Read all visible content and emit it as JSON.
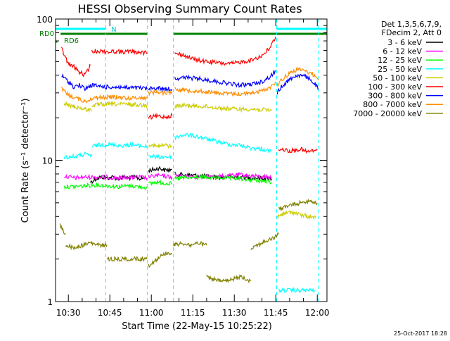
{
  "chart_data": {
    "type": "line",
    "title": "HESSI Observing Summary Count Rates",
    "xlabel": "Start Time (22-May-15 10:25:22)",
    "ylabel": "Count Rate (s⁻¹ detector⁻¹)",
    "x_ticks": [
      "10:30",
      "10:45",
      "11:00",
      "11:15",
      "11:30",
      "11:45",
      "12:00"
    ],
    "x_tick_minutes": [
      630,
      645,
      660,
      675,
      690,
      705,
      720
    ],
    "xlim_minutes": [
      625.37,
      723.5
    ],
    "ylim": [
      1,
      100
    ],
    "y_scale": "log",
    "y_ticks": [
      "1",
      "10",
      "100"
    ],
    "legend_header": [
      "Det 1,3,5,6,7,9,",
      "FDecim 2, Att 0"
    ],
    "legend_position": "right-outside",
    "timestamp": "25-Oct-2017 18:28",
    "flags": [
      {
        "name": "N",
        "color": "#00ffff",
        "segments": [
          [
            625.4,
            643.5
          ],
          [
            705.3,
            723.5
          ]
        ]
      },
      {
        "name": "RD0",
        "color": "#008000",
        "segments": [
          [
            627.2,
            658.6
          ],
          [
            668.0,
            705.0
          ],
          [
            705.0,
            723.5
          ]
        ]
      },
      {
        "name": "RD6",
        "color": "#008000",
        "segments": [
          [
            625.4,
            626.0
          ]
        ]
      }
    ],
    "dashed_lines_minutes": [
      643.5,
      658.6,
      668.0,
      705.3,
      720.5
    ],
    "series": [
      {
        "name": "3 - 6 keV",
        "color": "#000000",
        "segments": [
          {
            "x": [
              638.0,
              640.0,
              642.0,
              644.0,
              646.0,
              648.0,
              650.0,
              652.0,
              654.0,
              656.0,
              658.0
            ],
            "y": [
              7.0,
              7.4,
              7.6,
              7.5,
              7.6,
              7.4,
              7.6,
              7.5,
              7.6,
              7.4,
              7.5
            ]
          },
          {
            "x": [
              659.0,
              661.0,
              663.0,
              665.0,
              667.5
            ],
            "y": [
              8.5,
              8.6,
              8.8,
              8.5,
              8.6
            ]
          },
          {
            "x": [
              668.5,
              672.0,
              676.0,
              680.0,
              684.0,
              688.0,
              692.0,
              696.0,
              700.0,
              703.5
            ],
            "y": [
              8.0,
              7.9,
              7.8,
              7.7,
              7.6,
              7.6,
              7.6,
              7.5,
              7.5,
              7.4
            ]
          }
        ]
      },
      {
        "name": "6 - 12 keV",
        "color": "#ff00ff",
        "segments": [
          {
            "x": [
              628.5,
              632.0,
              636.0,
              640.0,
              644.0,
              648.0,
              652.0,
              656.0,
              658.5
            ],
            "y": [
              7.7,
              7.5,
              7.6,
              7.6,
              7.6,
              7.5,
              7.6,
              7.6,
              7.5
            ]
          },
          {
            "x": [
              659.0,
              662.0,
              665.0,
              667.5
            ],
            "y": [
              7.6,
              7.8,
              7.7,
              7.6
            ]
          },
          {
            "x": [
              668.5,
              674.0,
              680.0,
              686.0,
              692.0,
              698.0,
              703.5
            ],
            "y": [
              7.8,
              7.7,
              7.6,
              7.7,
              7.9,
              7.7,
              7.6
            ]
          }
        ]
      },
      {
        "name": "12 - 25 keV",
        "color": "#00ff00",
        "segments": [
          {
            "x": [
              628.5,
              632.0,
              636.0,
              640.0,
              644.0,
              648.0,
              652.0,
              656.0,
              658.5
            ],
            "y": [
              6.5,
              6.5,
              6.6,
              6.7,
              6.6,
              6.5,
              6.6,
              6.5,
              6.4
            ]
          },
          {
            "x": [
              659.0,
              662.0,
              665.0,
              667.5
            ],
            "y": [
              6.8,
              7.0,
              6.9,
              6.8
            ]
          },
          {
            "x": [
              668.5,
              674.0,
              680.0,
              686.0,
              692.0,
              698.0,
              703.5
            ],
            "y": [
              7.4,
              7.5,
              7.6,
              7.5,
              7.4,
              7.2,
              7.0
            ]
          }
        ]
      },
      {
        "name": "25 - 50 keV",
        "color": "#00ffff",
        "segments": [
          {
            "x": [
              628.5,
              632.0,
              636.0,
              638.5
            ],
            "y": [
              10.5,
              10.6,
              11.0,
              10.8
            ]
          },
          {
            "x": [
              638.5,
              641.0,
              644.0,
              647.0,
              650.0,
              653.0,
              656.0,
              658.5
            ],
            "y": [
              12.5,
              12.8,
              13.0,
              12.8,
              12.7,
              12.9,
              12.6,
              12.5
            ]
          },
          {
            "x": [
              659.0,
              662.0,
              665.0,
              667.5
            ],
            "y": [
              10.8,
              10.5,
              10.6,
              10.5
            ]
          },
          {
            "x": [
              668.5,
              672.0,
              676.0,
              680.0,
              684.0,
              688.0,
              692.0,
              696.0,
              700.0,
              703.5
            ],
            "y": [
              14.5,
              15.2,
              14.8,
              14.2,
              13.5,
              13.0,
              12.8,
              12.2,
              12.0,
              11.5
            ]
          },
          {
            "x": [
              706.0,
              709.0,
              712.0,
              716.0,
              719.0
            ],
            "y": [
              1.2,
              1.2,
              1.2,
              1.2,
              1.2
            ]
          }
        ]
      },
      {
        "name": "50 - 100 keV",
        "color": "#cccc00",
        "segments": [
          {
            "x": [
              628.5,
              632.0,
              636.0,
              638.5
            ],
            "y": [
              25.0,
              24.0,
              23.0,
              22.5
            ]
          },
          {
            "x": [
              638.5,
              642.0,
              646.0,
              650.0,
              654.0,
              658.5
            ],
            "y": [
              24.5,
              24.8,
              25.0,
              24.9,
              24.8,
              24.5
            ]
          },
          {
            "x": [
              659.0,
              662.0,
              665.0,
              667.5
            ],
            "y": [
              13.0,
              12.5,
              12.8,
              12.5
            ]
          },
          {
            "x": [
              668.5,
              672.0,
              676.0,
              680.0,
              684.0,
              688.0,
              692.0,
              696.0,
              700.0,
              703.5
            ],
            "y": [
              24.0,
              24.5,
              24.2,
              24.0,
              23.5,
              23.2,
              23.0,
              23.0,
              22.8,
              22.5
            ]
          },
          {
            "x": [
              705.5,
              708.0,
              711.0,
              714.0,
              717.0,
              719.5
            ],
            "y": [
              4.0,
              4.2,
              4.3,
              4.1,
              4.0,
              3.9
            ]
          }
        ]
      },
      {
        "name": "100 - 300 keV",
        "color": "#ff0000",
        "segments": [
          {
            "x": [
              627.5,
              630.0,
              632.0,
              634.0,
              636.0,
              638.0
            ],
            "y": [
              62.0,
              48.0,
              46.0,
              42.0,
              40.0,
              47.0
            ]
          },
          {
            "x": [
              638.5,
              641.0,
              644.0,
              647.0,
              650.0,
              653.0,
              656.0,
              658.5
            ],
            "y": [
              59.0,
              59.5,
              58.5,
              59.0,
              58.5,
              59.0,
              58.0,
              57.5
            ]
          },
          {
            "x": [
              659.0,
              662.0,
              665.0,
              667.5
            ],
            "y": [
              20.0,
              20.5,
              20.3,
              20.8
            ]
          },
          {
            "x": [
              668.5,
              671.0,
              674.0,
              677.0,
              680.0,
              684.0,
              688.0,
              692.0,
              696.0,
              700.0,
              703.0,
              705.0
            ],
            "y": [
              57.0,
              56.0,
              53.0,
              51.0,
              50.0,
              49.0,
              48.0,
              49.5,
              51.0,
              55.0,
              63.0,
              75.0
            ]
          },
          {
            "x": [
              706.0,
              708.0,
              710.0,
              712.0,
              714.0,
              716.0,
              718.0,
              720.0
            ],
            "y": [
              12.0,
              11.9,
              11.6,
              11.8,
              12.0,
              11.5,
              11.6,
              11.8
            ]
          }
        ]
      },
      {
        "name": "300 - 800 keV",
        "color": "#0000ff",
        "segments": [
          {
            "x": [
              627.5,
              630.0,
              632.0,
              634.0,
              636.0,
              638.5,
              641.0,
              644.0,
              648.0,
              652.0,
              656.0,
              658.5
            ],
            "y": [
              40.0,
              36.0,
              33.0,
              34.0,
              32.0,
              34.0,
              33.5,
              33.0,
              33.0,
              32.5,
              32.5,
              32.0
            ]
          },
          {
            "x": [
              659.0,
              662.0,
              665.0,
              667.5
            ],
            "y": [
              32.0,
              32.5,
              32.0,
              32.0
            ]
          },
          {
            "x": [
              668.5,
              672.0,
              676.0,
              680.0,
              684.0,
              688.0,
              692.0,
              696.0,
              700.0,
              703.0,
              705.0
            ],
            "y": [
              38.0,
              38.5,
              38.0,
              37.0,
              36.0,
              35.0,
              34.0,
              34.5,
              36.0,
              39.0,
              43.0
            ]
          },
          {
            "x": [
              705.5,
              707.0,
              709.0,
              711.0,
              713.0,
              715.0,
              717.0,
              719.0,
              720.5
            ],
            "y": [
              30.0,
              33.0,
              36.0,
              38.5,
              40.0,
              39.5,
              38.0,
              35.0,
              32.0
            ]
          }
        ]
      },
      {
        "name": "800 - 7000 keV",
        "color": "#ff8c00",
        "segments": [
          {
            "x": [
              627.5,
              630.0,
              632.0,
              634.0,
              636.0,
              638.5,
              641.0,
              644.0,
              648.0,
              652.0,
              656.0,
              658.5
            ],
            "y": [
              32.0,
              29.0,
              28.0,
              27.0,
              26.0,
              27.5,
              27.8,
              28.0,
              28.0,
              27.5,
              27.8,
              27.5
            ]
          },
          {
            "x": [
              659.0,
              662.0,
              665.0,
              667.5
            ],
            "y": [
              30.0,
              30.5,
              30.0,
              30.5
            ]
          },
          {
            "x": [
              668.5,
              672.0,
              676.0,
              680.0,
              684.0,
              688.0,
              692.0,
              696.0,
              700.0,
              703.0,
              705.0
            ],
            "y": [
              32.0,
              31.5,
              31.0,
              30.5,
              30.0,
              29.5,
              29.5,
              30.0,
              31.0,
              33.0,
              36.0
            ]
          },
          {
            "x": [
              705.5,
              707.0,
              709.0,
              711.0,
              713.0,
              715.0,
              717.0,
              719.0,
              720.5
            ],
            "y": [
              34.0,
              37.0,
              40.0,
              42.5,
              44.0,
              43.5,
              42.0,
              40.0,
              37.0
            ]
          }
        ]
      },
      {
        "name": "7000 - 20000 keV",
        "color": "#808000",
        "segments": [
          {
            "x": [
              627.0,
              628.0,
              629.0
            ],
            "y": [
              3.5,
              3.2,
              3.0
            ]
          },
          {
            "x": [
              629.0,
              632.0,
              635.0,
              638.0,
              641.0,
              644.0
            ],
            "y": [
              2.5,
              2.4,
              2.5,
              2.6,
              2.5,
              2.5
            ]
          },
          {
            "x": [
              644.0,
              648.0,
              652.0,
              656.0,
              658.5
            ],
            "y": [
              2.0,
              2.0,
              2.0,
              2.0,
              2.0
            ]
          },
          {
            "x": [
              659.0,
              662.0,
              665.0,
              667.5
            ],
            "y": [
              1.8,
              2.0,
              2.2,
              2.2
            ]
          },
          {
            "x": [
              668.0,
              671.0,
              674.0,
              677.0,
              680.0
            ],
            "y": [
              2.5,
              2.6,
              2.5,
              2.6,
              2.5
            ]
          },
          {
            "x": [
              680.0,
              684.0,
              688.0,
              692.0,
              696.0
            ],
            "y": [
              1.5,
              1.4,
              1.4,
              1.5,
              1.4
            ]
          },
          {
            "x": [
              696.0,
              700.0,
              704.0,
              706.0
            ],
            "y": [
              2.4,
              2.6,
              2.8,
              3.0
            ]
          },
          {
            "x": [
              706.0,
              710.0,
              714.0,
              717.0,
              720.0
            ],
            "y": [
              4.5,
              4.8,
              5.0,
              5.2,
              5.0
            ]
          }
        ]
      }
    ]
  }
}
